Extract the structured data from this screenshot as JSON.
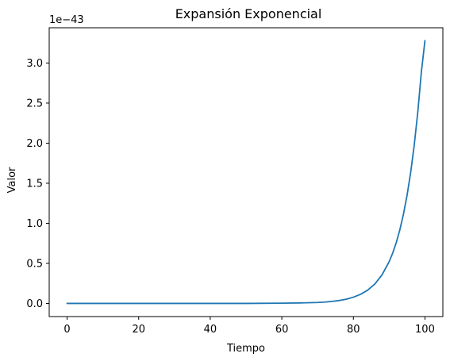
{
  "chart_data": {
    "type": "line",
    "title": "Expansión Exponencial",
    "xlabel": "Tiempo",
    "ylabel": "Valor",
    "scale_text": "1e−43",
    "scale_exponent": -43,
    "xlim": [
      -5,
      105
    ],
    "ylim_scaled": [
      -0.164,
      3.44
    ],
    "x_ticks": [
      0,
      20,
      40,
      60,
      80,
      100
    ],
    "x_tick_labels": [
      "0",
      "20",
      "40",
      "60",
      "80",
      "100"
    ],
    "y_ticks_scaled": [
      0.0,
      0.5,
      1.0,
      1.5,
      2.0,
      2.5,
      3.0
    ],
    "y_tick_labels": [
      "0.0",
      "0.5",
      "1.0",
      "1.5",
      "2.0",
      "2.5",
      "3.0"
    ],
    "grid": false,
    "series": [
      {
        "color": "#1f77b4",
        "x": [
          0,
          10,
          20,
          30,
          40,
          50,
          60,
          65,
          70,
          72,
          74,
          76,
          78,
          80,
          82,
          84,
          86,
          88,
          90,
          91,
          92,
          93,
          94,
          95,
          96,
          97,
          98,
          99,
          100
        ],
        "y_scaled": [
          0.0,
          0.0,
          0.0,
          0.0,
          0.0,
          0.0,
          0.003,
          0.006,
          0.012,
          0.017,
          0.025,
          0.036,
          0.053,
          0.078,
          0.114,
          0.166,
          0.243,
          0.356,
          0.521,
          0.63,
          0.762,
          0.922,
          1.116,
          1.35,
          1.633,
          1.975,
          2.39,
          2.892,
          3.28
        ]
      }
    ]
  }
}
